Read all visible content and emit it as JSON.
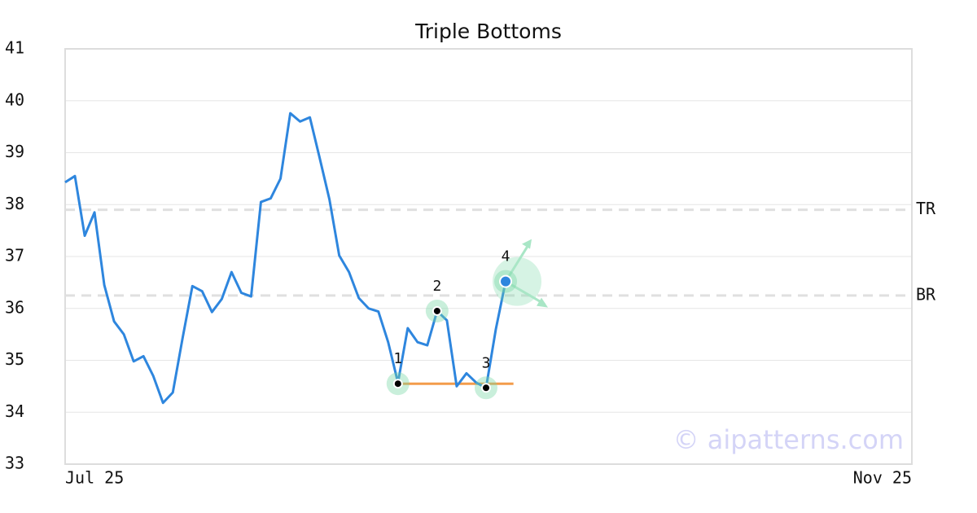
{
  "chart_data": {
    "type": "line",
    "title": "Triple Bottoms",
    "x": [
      0,
      1,
      2,
      3,
      4,
      5,
      6,
      7,
      8,
      9,
      10,
      11,
      12,
      13,
      14,
      15,
      16,
      17,
      18,
      19,
      20,
      21,
      22,
      23,
      24,
      25,
      26,
      27,
      28,
      29,
      30,
      31,
      32,
      33,
      34,
      35,
      36,
      37,
      38,
      39,
      40,
      41,
      42,
      43,
      44,
      45
    ],
    "values": [
      38.43,
      38.55,
      37.4,
      37.85,
      36.45,
      35.75,
      35.5,
      34.98,
      35.08,
      34.7,
      34.18,
      34.38,
      35.43,
      36.43,
      36.33,
      35.93,
      36.18,
      36.7,
      36.3,
      36.23,
      38.05,
      38.12,
      38.5,
      39.76,
      39.6,
      39.68,
      38.9,
      38.1,
      37.02,
      36.7,
      36.2,
      36.0,
      35.94,
      35.35,
      34.57,
      35.62,
      35.35,
      35.29,
      35.95,
      35.77,
      34.5,
      34.75,
      34.57,
      34.47,
      35.6,
      36.52
    ],
    "color": "#2e86de",
    "xlim": [
      0,
      86.5
    ],
    "xticks": [
      {
        "value": 0,
        "label": "Jul 25"
      },
      {
        "value": 86.5,
        "label": "Nov 25"
      }
    ],
    "ylim": [
      33,
      41
    ],
    "yticks": [
      33,
      34,
      35,
      36,
      37,
      38,
      39,
      40,
      41
    ],
    "grid": true,
    "levels": [
      {
        "label": "TR",
        "value": 37.9
      },
      {
        "label": "BR",
        "value": 36.25
      }
    ],
    "support": {
      "value": 34.55,
      "x": [
        34,
        45.8
      ],
      "color": "#f39c4a"
    },
    "pattern_points": [
      {
        "label": "1",
        "x": 34,
        "y": 34.55
      },
      {
        "label": "2",
        "x": 38,
        "y": 35.95
      },
      {
        "label": "3",
        "x": 43,
        "y": 34.47
      },
      {
        "label": "4",
        "x": 45,
        "y": 36.52
      }
    ],
    "watermark": "© aipatterns.com"
  }
}
